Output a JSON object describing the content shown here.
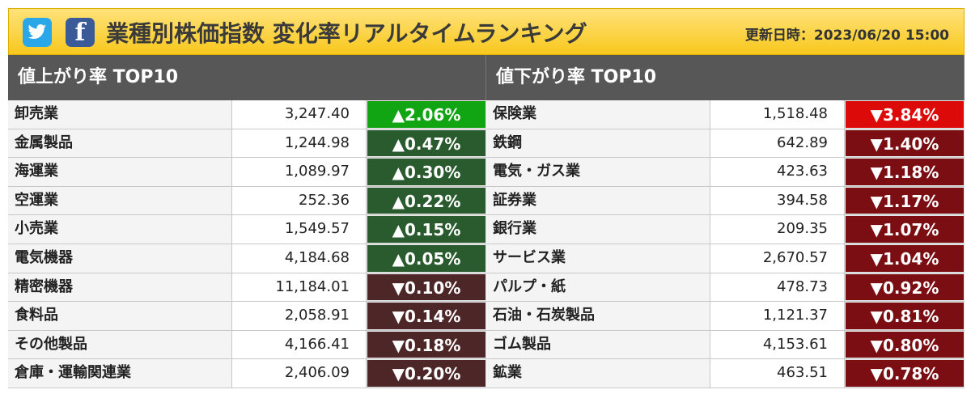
{
  "header": {
    "twitter_icon": "twitter-bird-icon",
    "facebook_glyph": "f",
    "title": "業種別株価指数 変化率リアルタイムランキング",
    "updated": "更新日時：2023/06/20 15:00"
  },
  "gainers": {
    "title": "値上がり率 TOP10",
    "rows": [
      {
        "name": "卸売業",
        "value": "3,247.40",
        "change": "▲2.06%",
        "color": "#12a513"
      },
      {
        "name": "金属製品",
        "value": "1,244.98",
        "change": "▲0.47%",
        "color": "#2a5b2e"
      },
      {
        "name": "海運業",
        "value": "1,089.97",
        "change": "▲0.30%",
        "color": "#2a5b2e"
      },
      {
        "name": "空運業",
        "value": "252.36",
        "change": "▲0.22%",
        "color": "#2a5b2e"
      },
      {
        "name": "小売業",
        "value": "1,549.57",
        "change": "▲0.15%",
        "color": "#2a5b2e"
      },
      {
        "name": "電気機器",
        "value": "4,184.68",
        "change": "▲0.05%",
        "color": "#2a5b2e"
      },
      {
        "name": "精密機器",
        "value": "11,184.01",
        "change": "▼0.10%",
        "color": "#4d2628"
      },
      {
        "name": "食料品",
        "value": "2,058.91",
        "change": "▼0.14%",
        "color": "#4d2628"
      },
      {
        "name": "その他製品",
        "value": "4,166.41",
        "change": "▼0.18%",
        "color": "#4d2628"
      },
      {
        "name": "倉庫・運輸関連業",
        "value": "2,406.09",
        "change": "▼0.20%",
        "color": "#4d2628"
      }
    ]
  },
  "losers": {
    "title": "値下がり率 TOP10",
    "rows": [
      {
        "name": "保険業",
        "value": "1,518.48",
        "change": "▼3.84%",
        "color": "#dd0a0a"
      },
      {
        "name": "鉄鋼",
        "value": "642.89",
        "change": "▼1.40%",
        "color": "#7a0e12"
      },
      {
        "name": "電気・ガス業",
        "value": "423.63",
        "change": "▼1.18%",
        "color": "#7a0e12"
      },
      {
        "name": "証券業",
        "value": "394.58",
        "change": "▼1.17%",
        "color": "#7a0e12"
      },
      {
        "name": "銀行業",
        "value": "209.35",
        "change": "▼1.07%",
        "color": "#7a0e12"
      },
      {
        "name": "サービス業",
        "value": "2,670.57",
        "change": "▼1.04%",
        "color": "#7a0e12"
      },
      {
        "name": "パルプ・紙",
        "value": "478.73",
        "change": "▼0.92%",
        "color": "#7a0e12"
      },
      {
        "name": "石油・石炭製品",
        "value": "1,121.37",
        "change": "▼0.81%",
        "color": "#7a0e12"
      },
      {
        "name": "ゴム製品",
        "value": "4,153.61",
        "change": "▼0.80%",
        "color": "#7a0e12"
      },
      {
        "name": "鉱業",
        "value": "463.51",
        "change": "▼0.78%",
        "color": "#7a0e12"
      }
    ]
  }
}
